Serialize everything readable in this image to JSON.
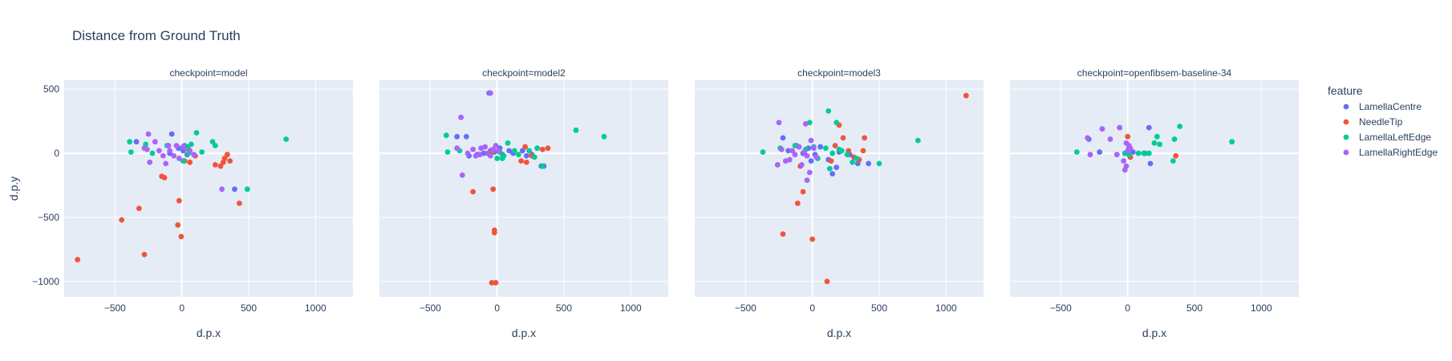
{
  "chart_data": {
    "type": "scatter",
    "title": "Distance from Ground Truth",
    "xlabel": "d.p.x",
    "ylabel": "d.p.y",
    "xlim": [
      -880,
      1280
    ],
    "ylim": [
      -1120,
      570
    ],
    "x_ticks": [
      -500,
      0,
      500,
      1000
    ],
    "x_tick_labels": [
      "−500",
      "0",
      "500",
      "1000"
    ],
    "y_ticks": [
      500,
      0,
      -500,
      -1000
    ],
    "y_tick_labels": [
      "500",
      "0",
      "−500",
      "−1000"
    ],
    "grid": true,
    "legend": {
      "title": "feature",
      "placement": "right",
      "entries": [
        {
          "name": "LamellaCentre",
          "color": "#636efa"
        },
        {
          "name": "NeedleTip",
          "color": "#ef553b"
        },
        {
          "name": "LamellaLeftEdge",
          "color": "#00cc96"
        },
        {
          "name": "LamellaRightEdge",
          "color": "#ab63fa"
        }
      ]
    },
    "facets": [
      {
        "title": "checkpoint=model",
        "series": [
          {
            "name": "LamellaCentre",
            "points": [
              [
                -75,
                150
              ],
              [
                -340,
                90
              ],
              [
                395,
                -280
              ],
              [
                -25,
                40
              ],
              [
                10,
                20
              ],
              [
                40,
                -10
              ],
              [
                -90,
                0
              ],
              [
                20,
                60
              ]
            ]
          },
          {
            "name": "NeedleTip",
            "points": [
              [
                -780,
                -830
              ],
              [
                -450,
                -520
              ],
              [
                -320,
                -430
              ],
              [
                -280,
                -790
              ],
              [
                -30,
                -560
              ],
              [
                -20,
                -370
              ],
              [
                -5,
                -650
              ],
              [
                250,
                -90
              ],
              [
                290,
                -100
              ],
              [
                310,
                -70
              ],
              [
                340,
                -10
              ],
              [
                360,
                -60
              ],
              [
                430,
                -390
              ],
              [
                320,
                -40
              ],
              [
                -150,
                -180
              ],
              [
                -130,
                -190
              ],
              [
                60,
                -70
              ],
              [
                20,
                -60
              ],
              [
                50,
                30
              ],
              [
                100,
                -20
              ]
            ]
          },
          {
            "name": "LamellaLeftEdge",
            "points": [
              [
                -390,
                90
              ],
              [
                -380,
                10
              ],
              [
                -270,
                70
              ],
              [
                -220,
                0
              ],
              [
                -110,
                60
              ],
              [
                40,
                50
              ],
              [
                50,
                0
              ],
              [
                110,
                160
              ],
              [
                150,
                10
              ],
              [
                230,
                90
              ],
              [
                250,
                60
              ],
              [
                490,
                -280
              ],
              [
                780,
                110
              ],
              [
                10,
                -60
              ],
              [
                70,
                70
              ]
            ]
          },
          {
            "name": "LamellaRightEdge",
            "points": [
              [
                -280,
                40
              ],
              [
                -260,
                30
              ],
              [
                -240,
                -70
              ],
              [
                -200,
                90
              ],
              [
                -170,
                20
              ],
              [
                -140,
                -20
              ],
              [
                -120,
                -80
              ],
              [
                -100,
                60
              ],
              [
                -90,
                20
              ],
              [
                -60,
                -20
              ],
              [
                -40,
                60
              ],
              [
                -20,
                -40
              ],
              [
                10,
                50
              ],
              [
                60,
                20
              ],
              [
                90,
                -10
              ],
              [
                300,
                -280
              ],
              [
                -250,
                150
              ]
            ]
          }
        ]
      },
      {
        "title": "checkpoint=model2",
        "series": [
          {
            "name": "LamellaCentre",
            "points": [
              [
                -300,
                130
              ],
              [
                -230,
                130
              ],
              [
                -210,
                -20
              ],
              [
                -150,
                -10
              ],
              [
                -100,
                0
              ],
              [
                -50,
                20
              ],
              [
                -20,
                10
              ],
              [
                20,
                40
              ],
              [
                40,
                -10
              ],
              [
                90,
                20
              ],
              [
                120,
                0
              ],
              [
                220,
                -20
              ],
              [
                260,
                -10
              ],
              [
                330,
                -100
              ],
              [
                350,
                -100
              ],
              [
                190,
                20
              ],
              [
                -60,
                470
              ]
            ]
          },
          {
            "name": "NeedleTip",
            "points": [
              [
                -180,
                -300
              ],
              [
                -30,
                -280
              ],
              [
                -20,
                -600
              ],
              [
                -20,
                -620
              ],
              [
                -40,
                -1010
              ],
              [
                -10,
                -1010
              ],
              [
                180,
                -60
              ],
              [
                220,
                -70
              ],
              [
                260,
                -20
              ],
              [
                340,
                30
              ],
              [
                380,
                40
              ],
              [
                210,
                50
              ],
              [
                -40,
                10
              ]
            ]
          },
          {
            "name": "LamellaLeftEdge",
            "points": [
              [
                -380,
                140
              ],
              [
                -370,
                10
              ],
              [
                -280,
                20
              ],
              [
                20,
                10
              ],
              [
                40,
                -40
              ],
              [
                80,
                80
              ],
              [
                130,
                20
              ],
              [
                160,
                -10
              ],
              [
                240,
                20
              ],
              [
                280,
                -30
              ],
              [
                300,
                40
              ],
              [
                340,
                -100
              ],
              [
                590,
                180
              ],
              [
                800,
                130
              ],
              [
                0,
                -40
              ],
              [
                50,
                -20
              ]
            ]
          },
          {
            "name": "LamellaRightEdge",
            "points": [
              [
                -300,
                40
              ],
              [
                -270,
                280
              ],
              [
                -260,
                -170
              ],
              [
                -220,
                0
              ],
              [
                -180,
                30
              ],
              [
                -130,
                -10
              ],
              [
                -90,
                50
              ],
              [
                -70,
                0
              ],
              [
                -50,
                -20
              ],
              [
                -30,
                30
              ],
              [
                -10,
                60
              ],
              [
                10,
                20
              ],
              [
                -50,
                470
              ],
              [
                -120,
                40
              ],
              [
                -160,
                -20
              ]
            ]
          }
        ]
      },
      {
        "title": "checkpoint=model3",
        "series": [
          {
            "name": "LamellaCentre",
            "points": [
              [
                -220,
                120
              ],
              [
                -180,
                20
              ],
              [
                -120,
                60
              ],
              [
                -70,
                0
              ],
              [
                -30,
                40
              ],
              [
                20,
                -10
              ],
              [
                60,
                50
              ],
              [
                120,
                -50
              ],
              [
                150,
                -160
              ],
              [
                200,
                10
              ],
              [
                280,
                -10
              ],
              [
                340,
                -80
              ],
              [
                420,
                -80
              ],
              [
                180,
                -110
              ],
              [
                -10,
                -60
              ]
            ]
          },
          {
            "name": "NeedleTip",
            "points": [
              [
                -220,
                -630
              ],
              [
                -110,
                -390
              ],
              [
                -70,
                -300
              ],
              [
                0,
                -670
              ],
              [
                110,
                -1000
              ],
              [
                140,
                -60
              ],
              [
                170,
                60
              ],
              [
                200,
                220
              ],
              [
                230,
                120
              ],
              [
                270,
                20
              ],
              [
                310,
                -30
              ],
              [
                350,
                -50
              ],
              [
                380,
                20
              ],
              [
                390,
                120
              ],
              [
                1150,
                450
              ],
              [
                -90,
                -100
              ]
            ]
          },
          {
            "name": "LamellaLeftEdge",
            "points": [
              [
                -370,
                10
              ],
              [
                -240,
                40
              ],
              [
                -130,
                60
              ],
              [
                -50,
                30
              ],
              [
                -20,
                240
              ],
              [
                10,
                50
              ],
              [
                40,
                -40
              ],
              [
                100,
                40
              ],
              [
                120,
                330
              ],
              [
                130,
                -120
              ],
              [
                150,
                0
              ],
              [
                180,
                240
              ],
              [
                200,
                30
              ],
              [
                260,
                -10
              ],
              [
                300,
                -70
              ],
              [
                330,
                -40
              ],
              [
                500,
                -80
              ],
              [
                790,
                100
              ],
              [
                220,
                20
              ]
            ]
          },
          {
            "name": "LamellaRightEdge",
            "points": [
              [
                -260,
                -90
              ],
              [
                -250,
                240
              ],
              [
                -230,
                30
              ],
              [
                -200,
                -60
              ],
              [
                -170,
                -50
              ],
              [
                -150,
                20
              ],
              [
                -130,
                -10
              ],
              [
                -100,
                50
              ],
              [
                -80,
                -90
              ],
              [
                -60,
                10
              ],
              [
                -40,
                -20
              ],
              [
                -20,
                -150
              ],
              [
                -40,
                -210
              ],
              [
                10,
                40
              ],
              [
                30,
                -30
              ],
              [
                -50,
                230
              ],
              [
                -10,
                100
              ]
            ]
          }
        ]
      },
      {
        "title": "checkpoint=openfibsem-baseline-34",
        "series": [
          {
            "name": "LamellaCentre",
            "points": [
              [
                -290,
                110
              ],
              [
                -210,
                10
              ],
              [
                -60,
                200
              ],
              [
                -20,
                0
              ],
              [
                10,
                50
              ],
              [
                40,
                10
              ],
              [
                130,
                0
              ],
              [
                160,
                200
              ],
              [
                170,
                -80
              ],
              [
                20,
                -30
              ]
            ]
          },
          {
            "name": "NeedleTip",
            "points": [
              [
                0,
                130
              ],
              [
                360,
                -20
              ],
              [
                20,
                -30
              ]
            ]
          },
          {
            "name": "LamellaLeftEdge",
            "points": [
              [
                -380,
                10
              ],
              [
                -20,
                0
              ],
              [
                10,
                -10
              ],
              [
                80,
                0
              ],
              [
                120,
                0
              ],
              [
                160,
                0
              ],
              [
                200,
                80
              ],
              [
                220,
                130
              ],
              [
                240,
                70
              ],
              [
                340,
                -60
              ],
              [
                350,
                110
              ],
              [
                390,
                210
              ],
              [
                780,
                90
              ]
            ]
          },
          {
            "name": "LamellaRightEdge",
            "points": [
              [
                -300,
                120
              ],
              [
                -280,
                -10
              ],
              [
                -190,
                190
              ],
              [
                -130,
                110
              ],
              [
                -80,
                -10
              ],
              [
                -60,
                200
              ],
              [
                -30,
                -60
              ],
              [
                -20,
                -130
              ],
              [
                -10,
                -100
              ],
              [
                0,
                20
              ],
              [
                10,
                60
              ],
              [
                20,
                40
              ],
              [
                -10,
                80
              ]
            ]
          }
        ]
      }
    ]
  }
}
